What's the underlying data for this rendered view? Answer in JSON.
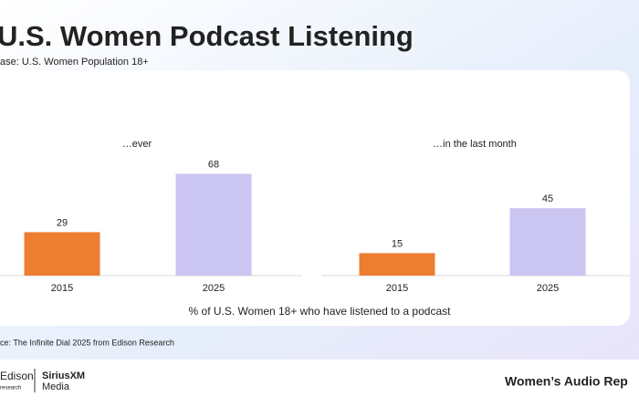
{
  "header": {
    "title": "U.S. Women Podcast Listening",
    "subtitle": "ase: U.S. Women Population 18+"
  },
  "chart_data": [
    {
      "type": "bar",
      "title": "…ever",
      "categories": [
        "2015",
        "2025"
      ],
      "values": [
        29,
        68
      ],
      "colors": [
        "#ed7d31",
        "#cbc5f2"
      ]
    },
    {
      "type": "bar",
      "title": "…in the last month",
      "categories": [
        "2015",
        "2025"
      ],
      "values": [
        15,
        45
      ],
      "colors": [
        "#ed7d31",
        "#cbc5f2"
      ]
    }
  ],
  "caption": "% of U.S. Women 18+ who have listened to a podcast",
  "source": "ce: The Infinite Dial 2025 from Edison Research",
  "footer": {
    "logo1": "Edison",
    "logo1_sub": "research",
    "logo2": "SiriusXM",
    "logo2_sub": "Media",
    "report": "Women’s Audio Rep"
  }
}
